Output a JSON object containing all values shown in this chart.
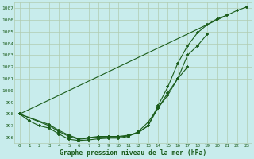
{
  "x": [
    0,
    1,
    2,
    3,
    4,
    5,
    6,
    7,
    8,
    9,
    10,
    11,
    12,
    13,
    14,
    15,
    16,
    17,
    18,
    19,
    20,
    21,
    22,
    23
  ],
  "line1": [
    998.0,
    997.4,
    997.0,
    996.8,
    996.3,
    995.85,
    995.75,
    995.8,
    995.9,
    995.95,
    995.95,
    996.1,
    996.5,
    997.3,
    998.5,
    999.6,
    1001.0,
    1003.0,
    1003.8,
    1004.8,
    null,
    null,
    null,
    null
  ],
  "line2": [
    998.0,
    null,
    null,
    997.0,
    996.5,
    996.1,
    995.85,
    995.95,
    996.05,
    996.05,
    996.05,
    996.15,
    996.4,
    997.0,
    998.5,
    999.8,
    1001.0,
    1002.0,
    null,
    null,
    null,
    null,
    null,
    null
  ],
  "line3": [
    998.0,
    null,
    null,
    997.1,
    996.6,
    996.2,
    995.9,
    996.0,
    996.1,
    996.1,
    996.1,
    996.2,
    996.45,
    997.0,
    998.7,
    1000.3,
    1002.3,
    1003.8,
    1004.9,
    1005.6,
    1006.1,
    1006.4,
    null,
    null
  ],
  "line4": [
    998.0,
    null,
    null,
    null,
    null,
    null,
    null,
    null,
    null,
    null,
    null,
    null,
    null,
    null,
    null,
    null,
    null,
    null,
    null,
    null,
    null,
    null,
    1006.8,
    1007.1
  ],
  "line_color": "#1a5c1a",
  "background_color": "#c8ecec",
  "grid_color": "#b0ccb0",
  "title": "Graphe pression niveau de la mer (hPa)",
  "ylim": [
    995.5,
    1007.5
  ],
  "xlim": [
    -0.5,
    23.5
  ],
  "yticks": [
    996,
    997,
    998,
    999,
    1000,
    1001,
    1002,
    1003,
    1004,
    1005,
    1006,
    1007
  ],
  "xticks": [
    0,
    1,
    2,
    3,
    4,
    5,
    6,
    7,
    8,
    9,
    10,
    11,
    12,
    13,
    14,
    15,
    16,
    17,
    18,
    19,
    20,
    21,
    22,
    23
  ]
}
